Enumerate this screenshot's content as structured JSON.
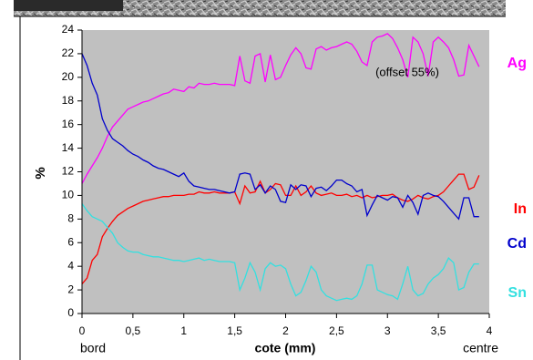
{
  "chart_data": {
    "type": "line",
    "ylabel": "%",
    "annotation": "(offset 55%)",
    "xlabel": "cote (mm)",
    "xlabel_left": "bord",
    "xlabel_right": "centre",
    "xlim": [
      0,
      4
    ],
    "ylim": [
      0,
      24
    ],
    "xticks": [
      0,
      {
        "value": 0.5,
        "label": "0,5"
      },
      1,
      {
        "value": 1.5,
        "label": "1,5"
      },
      2,
      {
        "value": 2.5,
        "label": "2,5"
      },
      3,
      {
        "value": 3.5,
        "label": "3,5"
      },
      4
    ],
    "yticks": [
      0,
      2,
      4,
      6,
      8,
      10,
      12,
      14,
      16,
      18,
      20,
      22,
      24
    ],
    "grid": false,
    "x": [
      0,
      0.05,
      0.1,
      0.15,
      0.2,
      0.25,
      0.3,
      0.35,
      0.4,
      0.45,
      0.5,
      0.55,
      0.6,
      0.65,
      0.7,
      0.75,
      0.8,
      0.85,
      0.9,
      0.95,
      1,
      1.05,
      1.1,
      1.15,
      1.2,
      1.25,
      1.3,
      1.35,
      1.4,
      1.45,
      1.5,
      1.55,
      1.6,
      1.65,
      1.7,
      1.75,
      1.8,
      1.85,
      1.9,
      1.95,
      2,
      2.05,
      2.1,
      2.15,
      2.2,
      2.25,
      2.3,
      2.35,
      2.4,
      2.45,
      2.5,
      2.55,
      2.6,
      2.65,
      2.7,
      2.75,
      2.8,
      2.85,
      2.9,
      2.95,
      3,
      3.05,
      3.1,
      3.15,
      3.2,
      3.25,
      3.3,
      3.35,
      3.4,
      3.45,
      3.5,
      3.55,
      3.6,
      3.65,
      3.7,
      3.75,
      3.8,
      3.85,
      3.9
    ],
    "series": [
      {
        "name": "Ag",
        "color": "#ff00ff",
        "values": [
          11,
          11.8,
          12.5,
          13.2,
          14,
          15,
          15.8,
          16.3,
          16.8,
          17.3,
          17.5,
          17.7,
          17.9,
          18,
          18.2,
          18.4,
          18.6,
          18.7,
          19,
          18.9,
          18.8,
          19.2,
          19.1,
          19.5,
          19.4,
          19.4,
          19.5,
          19.4,
          19.4,
          19.4,
          19.3,
          21.8,
          19.7,
          19.5,
          21.8,
          22,
          19.6,
          21.9,
          19.8,
          20,
          21,
          21.9,
          22.5,
          22,
          20.8,
          20.7,
          22.4,
          22.6,
          22.3,
          22.5,
          22.6,
          22.8,
          23,
          22.8,
          22.2,
          21.3,
          21,
          23,
          23.4,
          23.5,
          23.7,
          23.3,
          22.5,
          21.5,
          20,
          23.4,
          23,
          22,
          20.1,
          23,
          23.4,
          23,
          22.5,
          21.5,
          20.1,
          20.2,
          22.7,
          21.8,
          20.9
        ]
      },
      {
        "name": "In",
        "color": "#ff0000",
        "values": [
          2.5,
          3,
          4.5,
          5,
          6.5,
          7.2,
          7.8,
          8.3,
          8.6,
          8.9,
          9.1,
          9.3,
          9.5,
          9.6,
          9.7,
          9.8,
          9.9,
          9.9,
          10,
          10,
          10,
          10.1,
          10.1,
          10.3,
          10.2,
          10.2,
          10.3,
          10.2,
          10.2,
          10.2,
          10.3,
          9.3,
          10.8,
          10.2,
          10.3,
          11.2,
          10.2,
          10.5,
          11,
          10.9,
          10,
          10,
          10.8,
          10,
          10.3,
          10.8,
          10.2,
          10,
          10.1,
          10.2,
          10,
          10,
          10.1,
          9.9,
          10,
          9.8,
          10,
          9.8,
          9.9,
          10,
          10,
          10.1,
          9.8,
          9.6,
          9.5,
          9.7,
          10,
          9.8,
          9.7,
          9.9,
          10,
          10.3,
          10.8,
          11.3,
          11.8,
          11.8,
          10.5,
          10.7,
          11.7
        ]
      },
      {
        "name": "Cd",
        "color": "#0000cc",
        "values": [
          22,
          21,
          19.5,
          18.5,
          16.5,
          15.5,
          14.8,
          14.5,
          14.2,
          13.8,
          13.5,
          13.3,
          13,
          12.8,
          12.5,
          12.3,
          12.2,
          12,
          11.8,
          11.6,
          11.9,
          11.2,
          10.8,
          10.7,
          10.6,
          10.5,
          10.5,
          10.4,
          10.3,
          10.2,
          10.3,
          11.8,
          11.9,
          11.8,
          10.5,
          10.9,
          10.2,
          10.8,
          10.5,
          9.5,
          9.4,
          10.9,
          10.5,
          10.9,
          10.8,
          9.9,
          10.6,
          10.7,
          10.4,
          10.8,
          11.3,
          11.3,
          11,
          10.8,
          10.3,
          10.5,
          8.3,
          9.2,
          10,
          9.8,
          9.6,
          9.9,
          9.8,
          9,
          10,
          9.4,
          8.4,
          10,
          10.2,
          10,
          9.9,
          9.5,
          9,
          8.5,
          8,
          9.8,
          9.8,
          8.2,
          8.2
        ]
      },
      {
        "name": "Sn",
        "color": "#33e0e0",
        "values": [
          9.3,
          8.7,
          8.2,
          8,
          7.8,
          7.3,
          6.8,
          6,
          5.6,
          5.3,
          5.2,
          5.2,
          5,
          4.9,
          4.8,
          4.8,
          4.7,
          4.6,
          4.5,
          4.5,
          4.4,
          4.5,
          4.6,
          4.7,
          4.5,
          4.6,
          4.5,
          4.4,
          4.4,
          4.4,
          4.3,
          2,
          3,
          4.3,
          3.5,
          2,
          3.8,
          4.3,
          4,
          4.1,
          3.8,
          2.5,
          1.5,
          1.8,
          2.8,
          4,
          3.5,
          2,
          1.5,
          1.3,
          1.1,
          1.2,
          1.3,
          1.2,
          1.5,
          2.5,
          4.1,
          4.1,
          2,
          1.8,
          1.6,
          1.5,
          1.2,
          2.5,
          4,
          2,
          1.5,
          1.7,
          2.5,
          3,
          3.3,
          3.8,
          4.7,
          4.3,
          2,
          2.2,
          3.5,
          4.2,
          4.2
        ]
      }
    ]
  }
}
